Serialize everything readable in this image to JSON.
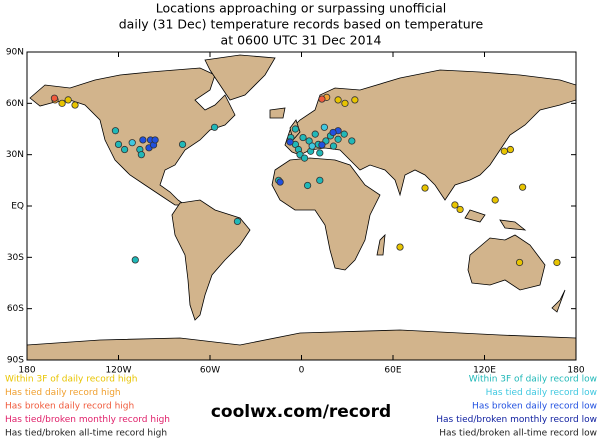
{
  "chart_data": {
    "type": "map",
    "title": [
      "Locations approaching or surpassing unofficial",
      "daily (31 Dec) temperature records based on temperature",
      "at 0600 UTC 31 Dec 2014"
    ],
    "source": "coolwx.com/record",
    "xlim": [
      -180,
      180
    ],
    "ylim": [
      -90,
      90
    ],
    "xticks": [
      {
        "value": -180,
        "label": "180"
      },
      {
        "value": -120,
        "label": "120W"
      },
      {
        "value": -60,
        "label": "60W"
      },
      0,
      {
        "value": 60,
        "label": "60E"
      },
      {
        "value": 120,
        "label": "120E"
      },
      {
        "value": 180,
        "label": "180"
      }
    ],
    "yticks": [
      {
        "value": 90,
        "label": "90N"
      },
      {
        "value": 60,
        "label": "60N"
      },
      {
        "value": 30,
        "label": "30N"
      },
      {
        "value": 0,
        "label": "EQ"
      },
      {
        "value": -30,
        "label": "30S"
      },
      {
        "value": -60,
        "label": "60S"
      },
      {
        "value": -90,
        "label": "90S"
      }
    ],
    "series": [
      {
        "name": "Within 3F of daily record high",
        "color": "#e8c400",
        "lon": [
          -157,
          -153,
          -148.5,
          24,
          28.5,
          35,
          137,
          133,
          81,
          100.6,
          104,
          127,
          145,
          64.6,
          143,
          167.5
        ],
        "lat": [
          60,
          62,
          59,
          62,
          60,
          62,
          33,
          32,
          10.5,
          0.6,
          -2,
          3.5,
          11,
          -24,
          -33,
          -33
        ]
      },
      {
        "name": "Has tied daily record high",
        "color": "#f0a030",
        "lon": [
          -161.6,
          16.5
        ],
        "lat": [
          62,
          63.5
        ]
      },
      {
        "name": "Has broken daily record high",
        "color": "#f05a3c",
        "lon": [
          -162,
          13.4
        ],
        "lat": [
          63,
          62.5
        ]
      },
      {
        "name": "Has tied/broken monthly record high",
        "color": "#e0206a",
        "lon": [],
        "lat": []
      },
      {
        "name": "Has tied/broken all-time record high",
        "color": "#202020",
        "lon": [],
        "lat": []
      },
      {
        "name": "Within 3F of daily record low",
        "color": "#20b8b8",
        "lon": [
          -122,
          -120,
          -116,
          -106,
          -105,
          -78,
          -57,
          -42,
          -109,
          -15,
          4,
          12,
          -7,
          -4,
          -2,
          1,
          5,
          9,
          11,
          6,
          12,
          16,
          19,
          21,
          24,
          28,
          33,
          -1,
          2,
          -4
        ],
        "lat": [
          44,
          36,
          33,
          33,
          30,
          36,
          46,
          -9,
          -31.5,
          15,
          12,
          15,
          40,
          36,
          33,
          40,
          38,
          42,
          36,
          32,
          31,
          38,
          41,
          35,
          39,
          42,
          38,
          30,
          28,
          45
        ]
      },
      {
        "name": "Has tied daily record low",
        "color": "#40c8e0",
        "lon": [
          -111,
          7,
          15
        ],
        "lat": [
          37,
          35,
          46
        ]
      },
      {
        "name": "Has broken daily record low",
        "color": "#2050e0",
        "lon": [
          -104,
          -99,
          -100,
          -97,
          -96,
          -7.5,
          13.4,
          24,
          20.7,
          -14
        ],
        "lat": [
          38.6,
          38.6,
          34,
          35.7,
          38.6,
          37.4,
          35.7,
          44,
          43,
          14
        ]
      },
      {
        "name": "Has tied/broken monthly record low",
        "color": "#1020a0",
        "lon": [],
        "lat": []
      },
      {
        "name": "Has tied/broken all-time record low",
        "color": "#202020",
        "lon": [],
        "lat": []
      }
    ]
  }
}
